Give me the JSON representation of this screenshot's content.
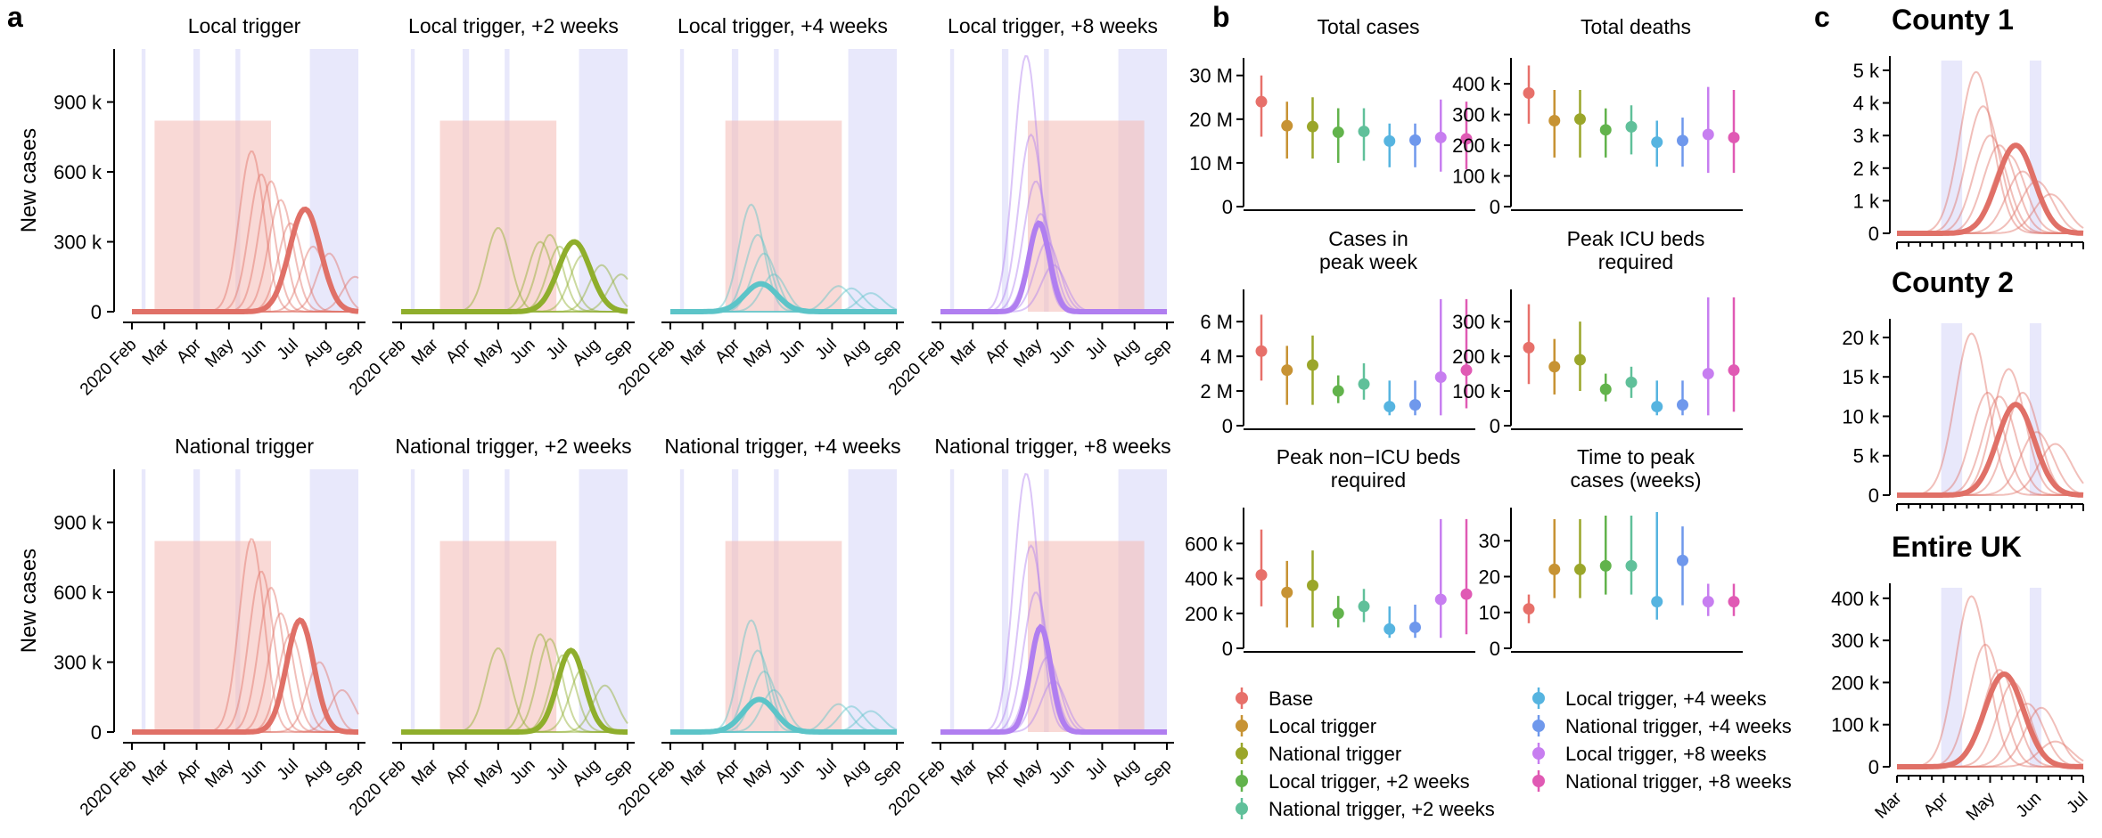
{
  "panel_letters": {
    "a": "a",
    "b": "b",
    "c": "c"
  },
  "colors": {
    "red": "#e07067",
    "olive": "#8fae2c",
    "teal": "#5cc4c8",
    "purple": "#b07ef0",
    "band_pink": "#f4b9b5",
    "band_blue": "#e6e6fb"
  },
  "chart_data": [
    {
      "panel": "a",
      "type": "line",
      "ylabel": "New cases",
      "x_ticks": [
        "2020 Feb",
        "Mar",
        "Apr",
        "May",
        "Jun",
        "Jul",
        "Aug",
        "Sep"
      ],
      "ylim": [
        0,
        1120000
      ],
      "y_ticks": [
        0,
        300000,
        600000,
        900000
      ],
      "y_tick_labels": [
        "0",
        "300 k",
        "600 k",
        "900 k"
      ],
      "subplots": [
        {
          "title": "Local trigger",
          "color": "red",
          "main": {
            "peak_month": 5.35,
            "peak": 440000,
            "width": 0.48
          },
          "ghost_peaks": [
            [
              3.7,
              690000
            ],
            [
              4.0,
              590000
            ],
            [
              4.3,
              560000
            ],
            [
              4.6,
              480000
            ],
            [
              4.9,
              380000
            ],
            [
              5.6,
              280000
            ],
            [
              6.1,
              250000
            ],
            [
              6.9,
              150000
            ]
          ]
        },
        {
          "title": "Local trigger, +2 weeks",
          "color": "olive",
          "main": {
            "peak_month": 5.35,
            "peak": 300000,
            "width": 0.5
          },
          "ghost_peaks": [
            [
              3.0,
              360000
            ],
            [
              4.3,
              300000
            ],
            [
              4.6,
              330000
            ],
            [
              4.9,
              280000
            ],
            [
              5.6,
              240000
            ],
            [
              6.2,
              200000
            ],
            [
              6.8,
              160000
            ]
          ]
        },
        {
          "title": "Local trigger, +4 weeks",
          "color": "teal",
          "main": {
            "peak_month": 2.8,
            "peak": 120000,
            "width": 0.5
          },
          "ghost_peaks": [
            [
              2.5,
              460000
            ],
            [
              2.7,
              330000
            ],
            [
              2.9,
              250000
            ],
            [
              3.2,
              160000
            ],
            [
              5.2,
              110000
            ],
            [
              5.6,
              100000
            ],
            [
              6.2,
              80000
            ]
          ]
        },
        {
          "title": "Local trigger, +8 weeks",
          "color": "purple",
          "main": {
            "peak_month": 3.05,
            "peak": 380000,
            "width": 0.32
          },
          "ghost_peaks": [
            [
              2.65,
              1100000
            ],
            [
              2.8,
              760000
            ],
            [
              2.95,
              560000
            ],
            [
              3.1,
              420000
            ],
            [
              3.3,
              300000
            ],
            [
              3.5,
              200000
            ]
          ]
        },
        {
          "title": "National trigger",
          "color": "red",
          "main": {
            "peak_month": 5.2,
            "peak": 480000,
            "width": 0.42
          },
          "ghost_peaks": [
            [
              3.7,
              830000
            ],
            [
              4.0,
              690000
            ],
            [
              4.3,
              620000
            ],
            [
              4.6,
              510000
            ],
            [
              4.9,
              420000
            ],
            [
              5.8,
              300000
            ],
            [
              6.5,
              180000
            ]
          ]
        },
        {
          "title": "National trigger, +2 weeks",
          "color": "olive",
          "main": {
            "peak_month": 5.25,
            "peak": 350000,
            "width": 0.42
          },
          "ghost_peaks": [
            [
              3.0,
              360000
            ],
            [
              4.3,
              420000
            ],
            [
              4.6,
              400000
            ],
            [
              5.0,
              330000
            ],
            [
              5.6,
              270000
            ],
            [
              6.3,
              200000
            ]
          ]
        },
        {
          "title": "National trigger, +4 weeks",
          "color": "teal",
          "main": {
            "peak_month": 2.75,
            "peak": 140000,
            "width": 0.5
          },
          "ghost_peaks": [
            [
              2.5,
              480000
            ],
            [
              2.7,
              350000
            ],
            [
              2.9,
              260000
            ],
            [
              3.2,
              180000
            ],
            [
              5.2,
              120000
            ],
            [
              5.6,
              110000
            ],
            [
              6.2,
              90000
            ]
          ]
        },
        {
          "title": "National trigger, +8 weeks",
          "color": "purple",
          "main": {
            "peak_month": 3.1,
            "peak": 450000,
            "width": 0.32
          },
          "ghost_peaks": [
            [
              2.65,
              1110000
            ],
            [
              2.8,
              800000
            ],
            [
              2.95,
              600000
            ],
            [
              3.1,
              440000
            ],
            [
              3.3,
              320000
            ],
            [
              3.5,
              220000
            ]
          ]
        }
      ]
    },
    {
      "panel": "b",
      "type": "scatter",
      "series": [
        {
          "name": "Base",
          "color": "#e7706a"
        },
        {
          "name": "Local trigger",
          "color": "#c79334"
        },
        {
          "name": "National trigger",
          "color": "#9aa62a"
        },
        {
          "name": "Local trigger, +2 weeks",
          "color": "#62b34c"
        },
        {
          "name": "National trigger, +2 weeks",
          "color": "#60c09a"
        },
        {
          "name": "Local trigger, +4 weeks",
          "color": "#56b4e0"
        },
        {
          "name": "National trigger, +4 weeks",
          "color": "#6f98ec"
        },
        {
          "name": "Local trigger, +8 weeks",
          "color": "#c77ef0"
        },
        {
          "name": "National trigger, +8 weeks",
          "color": "#e05ab4"
        }
      ],
      "subplots": [
        {
          "title": [
            "Total cases"
          ],
          "ylim": [
            0,
            33000000
          ],
          "y_ticks": [
            0,
            10000000,
            20000000,
            30000000
          ],
          "y_tick_labels": [
            "0",
            "10 M",
            "20 M",
            "30 M"
          ],
          "points": [
            [
              24000000,
              16000000,
              30000000
            ],
            [
              18500000,
              11000000,
              24000000
            ],
            [
              18300000,
              11000000,
              25000000
            ],
            [
              17000000,
              10000000,
              22500000
            ],
            [
              17200000,
              10500000,
              22500000
            ],
            [
              15000000,
              9000000,
              19000000
            ],
            [
              15200000,
              9000000,
              19000000
            ],
            [
              15800000,
              8000000,
              24500000
            ],
            [
              15500000,
              8500000,
              24000000
            ]
          ]
        },
        {
          "title": [
            "Total deaths"
          ],
          "ylim": [
            0,
            470000
          ],
          "y_ticks": [
            0,
            100000,
            200000,
            300000,
            400000
          ],
          "y_tick_labels": [
            "0",
            "100 k",
            "200 k",
            "300 k",
            "400 k"
          ],
          "points": [
            [
              370000,
              270000,
              460000
            ],
            [
              280000,
              160000,
              380000
            ],
            [
              285000,
              160000,
              380000
            ],
            [
              250000,
              160000,
              320000
            ],
            [
              260000,
              170000,
              330000
            ],
            [
              210000,
              130000,
              280000
            ],
            [
              215000,
              130000,
              290000
            ],
            [
              235000,
              110000,
              390000
            ],
            [
              225000,
              110000,
              380000
            ]
          ]
        },
        {
          "title": [
            "Cases in",
            "peak week"
          ],
          "ylim": [
            0,
            7600000
          ],
          "y_ticks": [
            0,
            2000000,
            4000000,
            6000000
          ],
          "y_tick_labels": [
            "0",
            "2 M",
            "4 M",
            "6 M"
          ],
          "points": [
            [
              4300000,
              2600000,
              6400000
            ],
            [
              3200000,
              1200000,
              4600000
            ],
            [
              3500000,
              1200000,
              5200000
            ],
            [
              2000000,
              1300000,
              2900000
            ],
            [
              2400000,
              1500000,
              3600000
            ],
            [
              1100000,
              600000,
              2600000
            ],
            [
              1200000,
              600000,
              2600000
            ],
            [
              2800000,
              600000,
              7300000
            ],
            [
              3200000,
              1000000,
              7300000
            ]
          ]
        },
        {
          "title": [
            "Peak ICU beds",
            "required"
          ],
          "ylim": [
            0,
            380000
          ],
          "y_ticks": [
            0,
            100000,
            200000,
            300000
          ],
          "y_tick_labels": [
            "0",
            "100 k",
            "200 k",
            "300 k"
          ],
          "points": [
            [
              225000,
              120000,
              350000
            ],
            [
              170000,
              90000,
              250000
            ],
            [
              190000,
              100000,
              300000
            ],
            [
              105000,
              70000,
              150000
            ],
            [
              125000,
              80000,
              170000
            ],
            [
              55000,
              30000,
              130000
            ],
            [
              60000,
              30000,
              130000
            ],
            [
              150000,
              30000,
              370000
            ],
            [
              160000,
              40000,
              370000
            ]
          ]
        },
        {
          "title": [
            "Peak non−ICU beds",
            "required"
          ],
          "ylim": [
            0,
            780000
          ],
          "y_ticks": [
            0,
            200000,
            400000,
            600000
          ],
          "y_tick_labels": [
            "0",
            "200 k",
            "400 k",
            "600 k"
          ],
          "points": [
            [
              420000,
              240000,
              680000
            ],
            [
              320000,
              120000,
              500000
            ],
            [
              360000,
              120000,
              560000
            ],
            [
              200000,
              120000,
              300000
            ],
            [
              240000,
              150000,
              340000
            ],
            [
              110000,
              60000,
              240000
            ],
            [
              120000,
              60000,
              250000
            ],
            [
              280000,
              60000,
              740000
            ],
            [
              310000,
              80000,
              740000
            ]
          ]
        },
        {
          "title": [
            "Time to peak",
            "cases (weeks)"
          ],
          "ylim": [
            0,
            38
          ],
          "y_ticks": [
            0,
            10,
            20,
            30
          ],
          "y_tick_labels": [
            "0",
            "10",
            "20",
            "30"
          ],
          "points": [
            [
              11,
              7,
              15
            ],
            [
              22,
              14,
              36
            ],
            [
              22,
              14,
              36
            ],
            [
              23,
              15,
              37
            ],
            [
              23,
              15,
              37
            ],
            [
              13,
              8,
              38
            ],
            [
              24.5,
              12,
              34
            ],
            [
              13,
              9,
              18
            ],
            [
              13,
              9,
              18
            ]
          ]
        }
      ]
    },
    {
      "panel": "c",
      "type": "line",
      "x_ticks": [
        "Mar",
        "Apr",
        "May",
        "Jun",
        "Jul"
      ],
      "subplots": [
        {
          "title": "County 1",
          "ylim": [
            0,
            5300
          ],
          "y_ticks": [
            0,
            1000,
            2000,
            3000,
            4000,
            5000
          ],
          "y_tick_labels": [
            "0",
            "1 k",
            "2 k",
            "3 k",
            "4 k",
            "5 k"
          ],
          "main": {
            "peak_month": 2.55,
            "peak": 2700,
            "width": 0.4
          },
          "ghost_peaks": [
            [
              1.7,
              4950
            ],
            [
              1.85,
              3900
            ],
            [
              2.0,
              3000
            ],
            [
              2.2,
              2700
            ],
            [
              2.4,
              2400
            ],
            [
              2.7,
              1900
            ],
            [
              3.0,
              1600
            ],
            [
              3.3,
              1200
            ]
          ]
        },
        {
          "title": "County 2",
          "ylim": [
            0,
            21800
          ],
          "y_ticks": [
            0,
            5000,
            10000,
            15000,
            20000
          ],
          "y_tick_labels": [
            "0",
            "5 k",
            "10 k",
            "15 k",
            "20 k"
          ],
          "main": {
            "peak_month": 2.55,
            "peak": 11500,
            "width": 0.4
          },
          "ghost_peaks": [
            [
              1.6,
              20500
            ],
            [
              1.95,
              13000
            ],
            [
              2.2,
              12500
            ],
            [
              2.4,
              16000
            ],
            [
              2.7,
              13000
            ],
            [
              3.0,
              8000
            ],
            [
              3.4,
              6500
            ]
          ]
        },
        {
          "title": "Entire UK",
          "ylim": [
            0,
            425000
          ],
          "y_ticks": [
            0,
            100000,
            200000,
            300000,
            400000
          ],
          "y_tick_labels": [
            "0",
            "100 k",
            "200 k",
            "300 k",
            "400 k"
          ],
          "main": {
            "peak_month": 2.3,
            "peak": 220000,
            "width": 0.42
          },
          "ghost_peaks": [
            [
              1.6,
              405000
            ],
            [
              1.9,
              290000
            ],
            [
              2.2,
              230000
            ],
            [
              2.5,
              200000
            ],
            [
              2.8,
              150000
            ],
            [
              3.1,
              140000
            ],
            [
              3.4,
              60000
            ]
          ]
        }
      ]
    }
  ]
}
